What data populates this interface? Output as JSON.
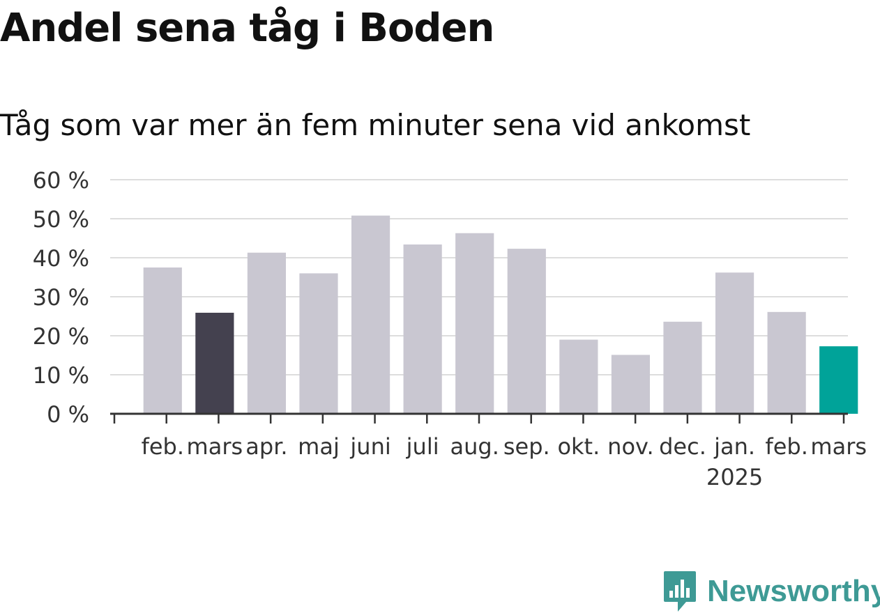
{
  "header": {
    "title": "Andel sena tåg i Boden",
    "subtitle": "Tåg som var mer än fem minuter sena vid ankomst"
  },
  "brand": {
    "name": "Newsworthy",
    "icon": "bar-chart-speech-bubble-icon",
    "color": "#3e9a95"
  },
  "colors": {
    "bar": "#c9c7d1",
    "highlight_prev_year": "#44414f",
    "highlight_latest": "#00a399",
    "grid": "#dddddd",
    "axis": "#333333"
  },
  "chart_data": {
    "type": "bar",
    "title": "Andel sena tåg i Boden",
    "subtitle": "Tåg som var mer än fem minuter sena vid ankomst",
    "categories": [
      "feb.",
      "mars",
      "apr.",
      "maj",
      "juni",
      "juli",
      "aug.",
      "sep.",
      "okt.",
      "nov.",
      "dec.",
      "jan.",
      "feb.",
      "mars"
    ],
    "year_labels": [
      "",
      "",
      "",
      "",
      "",
      "",
      "",
      "",
      "",
      "",
      "",
      "2025",
      "",
      ""
    ],
    "values": [
      37.5,
      25.9,
      41.3,
      36.0,
      50.8,
      43.4,
      46.3,
      42.3,
      19.0,
      15.1,
      23.6,
      36.2,
      26.1,
      17.3
    ],
    "highlight": [
      null,
      "highlight_prev_year",
      null,
      null,
      null,
      null,
      null,
      null,
      null,
      null,
      null,
      null,
      null,
      "highlight_latest"
    ],
    "yticks": [
      "0 %",
      "10 %",
      "20 %",
      "30 %",
      "40 %",
      "50 %",
      "60 %"
    ],
    "ytick_values": [
      0,
      10,
      20,
      30,
      40,
      50,
      60
    ],
    "ylim": [
      0,
      60
    ],
    "xlabel": "",
    "ylabel": "",
    "grid": true,
    "legend": "none"
  }
}
